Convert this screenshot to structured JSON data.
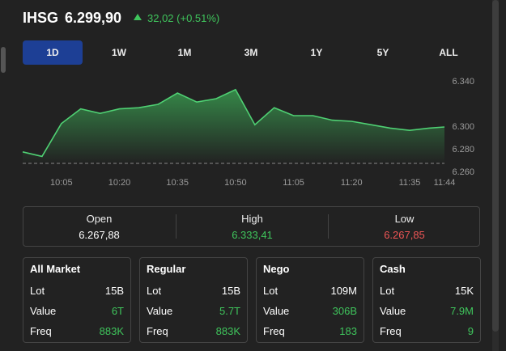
{
  "header": {
    "symbol": "IHSG",
    "price": "6.299,90",
    "change": "32,02 (+0.51%)"
  },
  "tabs": [
    "1D",
    "1W",
    "1M",
    "3M",
    "1Y",
    "5Y",
    "ALL"
  ],
  "chart": {
    "type": "line",
    "x": [
      "09:55",
      "10:00",
      "10:05",
      "10:10",
      "10:15",
      "10:20",
      "10:25",
      "10:30",
      "10:35",
      "10:40",
      "10:45",
      "10:50",
      "10:55",
      "11:00",
      "11:05",
      "11:10",
      "11:15",
      "11:20",
      "11:25",
      "11:30",
      "11:35",
      "11:40",
      "11:44"
    ],
    "values": [
      6278,
      6274,
      6303,
      6316,
      6312,
      6316,
      6317,
      6320,
      6330,
      6322,
      6325,
      6333,
      6302,
      6317,
      6310,
      6310,
      6306,
      6305,
      6302,
      6299,
      6297,
      6299,
      6300
    ],
    "xlim": [
      "09:55",
      "11:44"
    ],
    "xticks": [
      "10:05",
      "10:20",
      "10:35",
      "10:50",
      "11:05",
      "11:20",
      "11:35",
      "11:44"
    ],
    "ylim": [
      6260,
      6345
    ],
    "yticks": [
      {
        "value": 6260,
        "label": "6.260"
      },
      {
        "value": 6280,
        "label": "6.280"
      },
      {
        "value": 6300,
        "label": "6.300"
      },
      {
        "value": 6340,
        "label": "6.340"
      }
    ],
    "baseline": 6267.88,
    "color": "#4fd073"
  },
  "stats": [
    {
      "label": "Open",
      "value": "6.267,88"
    },
    {
      "label": "High",
      "value": "6.333,41"
    },
    {
      "label": "Low",
      "value": "6.267,85"
    }
  ],
  "cards": [
    {
      "title": "All Market",
      "rows": [
        [
          "Lot",
          "15B"
        ],
        [
          "Value",
          "6T"
        ],
        [
          "Freq",
          "883K"
        ]
      ]
    },
    {
      "title": "Regular",
      "rows": [
        [
          "Lot",
          "15B"
        ],
        [
          "Value",
          "5.7T"
        ],
        [
          "Freq",
          "883K"
        ]
      ]
    },
    {
      "title": "Nego",
      "rows": [
        [
          "Lot",
          "109M"
        ],
        [
          "Value",
          "306B"
        ],
        [
          "Freq",
          "183"
        ]
      ]
    },
    {
      "title": "Cash",
      "rows": [
        [
          "Lot",
          "15K"
        ],
        [
          "Value",
          "7.9M"
        ],
        [
          "Freq",
          "9"
        ]
      ]
    }
  ]
}
